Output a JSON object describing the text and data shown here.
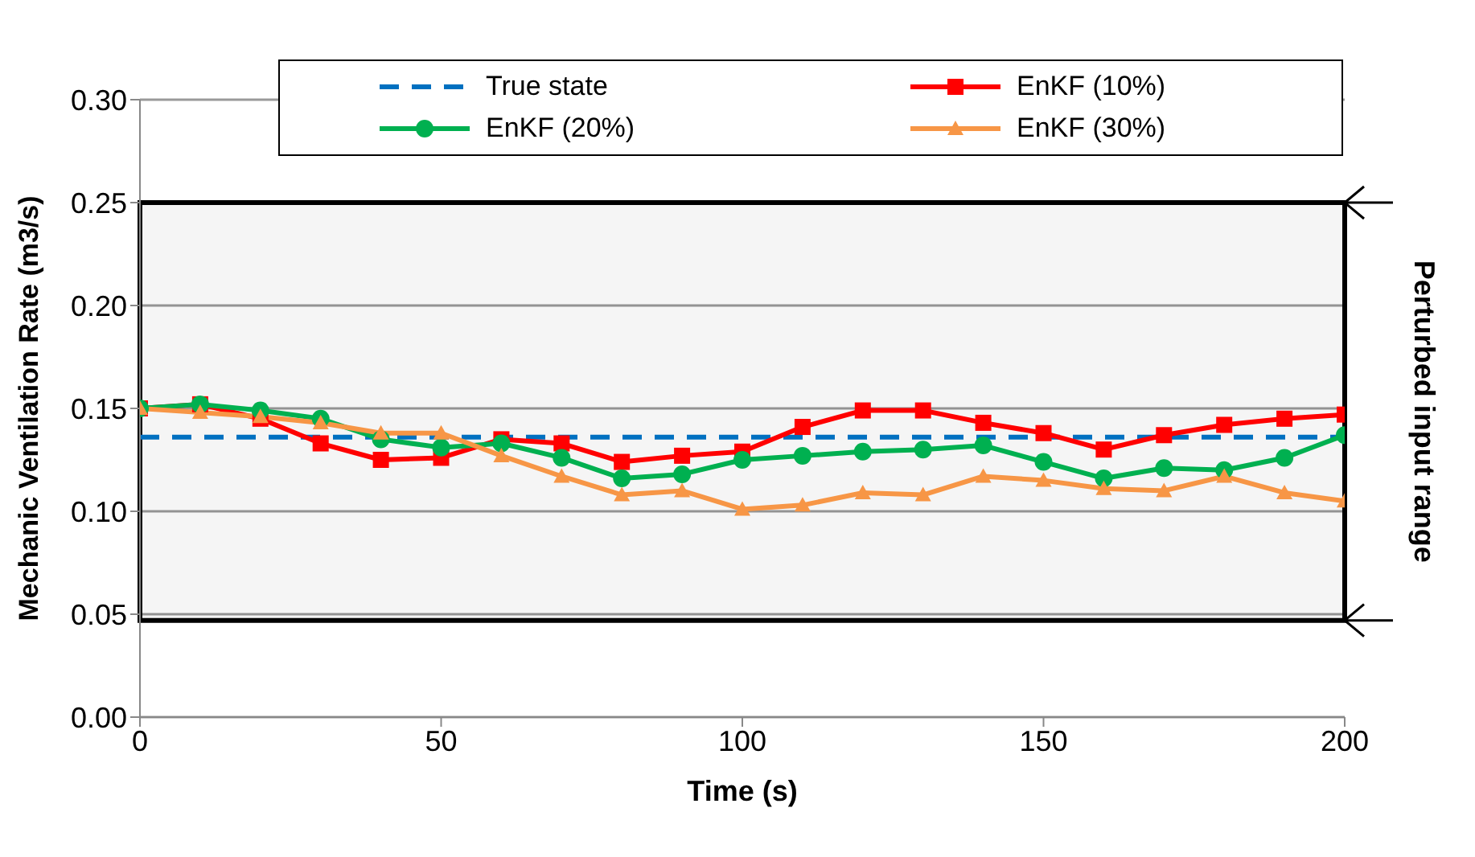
{
  "chart_data": {
    "type": "line",
    "xlabel": "Time (s)",
    "ylabel": "Mechanic Ventilation Rate (m3/s)",
    "x": [
      0,
      10,
      20,
      30,
      40,
      50,
      60,
      70,
      80,
      90,
      100,
      110,
      120,
      130,
      140,
      150,
      160,
      170,
      180,
      190,
      200
    ],
    "series": [
      {
        "name": "True state",
        "color": "#0070c0",
        "line_style": "dashed",
        "marker": "none",
        "values": [
          0.136,
          0.136,
          0.136,
          0.136,
          0.136,
          0.136,
          0.136,
          0.136,
          0.136,
          0.136,
          0.136,
          0.136,
          0.136,
          0.136,
          0.136,
          0.136,
          0.136,
          0.136,
          0.136,
          0.136,
          0.136
        ]
      },
      {
        "name": "EnKF (10%)",
        "color": "#ff0000",
        "marker": "square",
        "values": [
          0.15,
          0.152,
          0.145,
          0.133,
          0.125,
          0.126,
          0.135,
          0.133,
          0.124,
          0.127,
          0.129,
          0.141,
          0.149,
          0.149,
          0.143,
          0.138,
          0.13,
          0.137,
          0.142,
          0.145,
          0.147
        ]
      },
      {
        "name": "EnKF (20%)",
        "color": "#00b050",
        "marker": "circle",
        "values": [
          0.15,
          0.152,
          0.149,
          0.145,
          0.135,
          0.131,
          0.133,
          0.126,
          0.116,
          0.118,
          0.125,
          0.127,
          0.129,
          0.13,
          0.132,
          0.124,
          0.116,
          0.121,
          0.12,
          0.126,
          0.137
        ]
      },
      {
        "name": "EnKF (30%)",
        "color": "#f79646",
        "marker": "triangle",
        "values": [
          0.15,
          0.148,
          0.146,
          0.143,
          0.138,
          0.138,
          0.127,
          0.117,
          0.108,
          0.11,
          0.101,
          0.103,
          0.109,
          0.108,
          0.117,
          0.115,
          0.111,
          0.11,
          0.117,
          0.109,
          0.105
        ]
      }
    ],
    "xlim": [
      0,
      200
    ],
    "xticks": [
      0,
      50,
      100,
      150,
      200
    ],
    "ylim": [
      0,
      0.3
    ],
    "yticks": [
      {
        "value": 0,
        "label": "0.00"
      },
      0.05,
      {
        "value": 0.1,
        "label": "0.10"
      },
      0.15,
      {
        "value": 0.2,
        "label": "0.20"
      },
      0.25,
      {
        "value": 0.3,
        "label": "0.30"
      }
    ],
    "grid": "y",
    "legend": "top",
    "bands": [
      {
        "axis": "y",
        "from": 0.047,
        "to": 0.25,
        "label": "Perturbed input range",
        "color": "#000000"
      }
    ]
  }
}
